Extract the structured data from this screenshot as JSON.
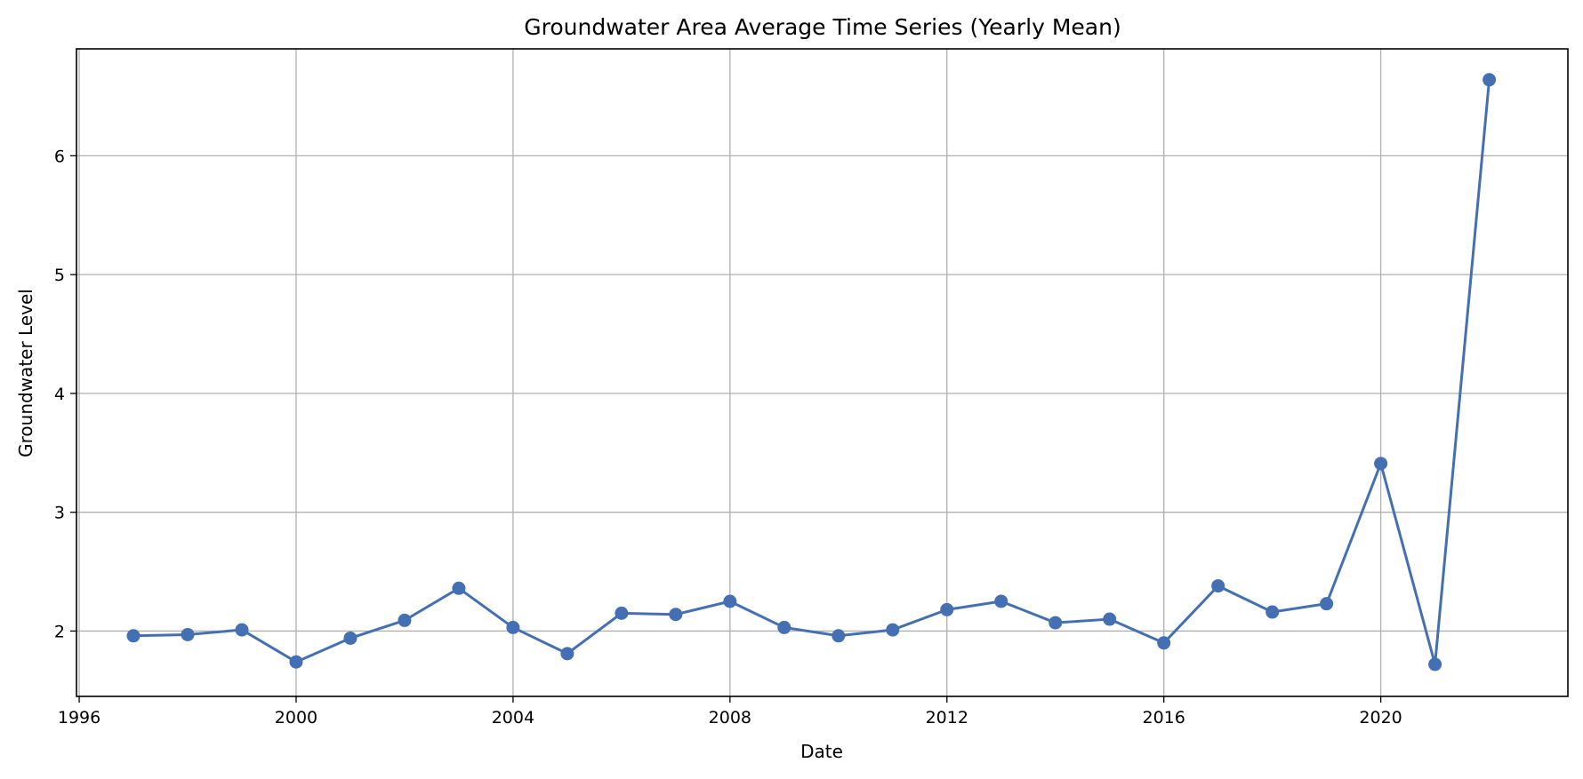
{
  "chart_data": {
    "type": "line",
    "title": "Groundwater Area Average Time Series (Yearly Mean)",
    "xlabel": "Date",
    "ylabel": "Groundwater Level",
    "xlim": [
      1995.95,
      2023.45
    ],
    "ylim": [
      1.45,
      6.9
    ],
    "xticks": [
      1996,
      2000,
      2004,
      2008,
      2012,
      2016,
      2020
    ],
    "xtick_labels": [
      "1996",
      "2000",
      "2004",
      "2008",
      "2012",
      "2016",
      "2020"
    ],
    "yticks": [
      2,
      3,
      4,
      5,
      6
    ],
    "ytick_labels": [
      "2",
      "3",
      "4",
      "5",
      "6"
    ],
    "grid": true,
    "colors": {
      "series": "#4470b3",
      "grid": "#b0b0b0"
    },
    "series": [
      {
        "marker": "circle",
        "x": [
          1997,
          1998,
          1999,
          2000,
          2001,
          2002,
          2003,
          2004,
          2005,
          2006,
          2007,
          2008,
          2009,
          2010,
          2011,
          2012,
          2013,
          2014,
          2015,
          2016,
          2017,
          2018,
          2019,
          2020,
          2021,
          2022
        ],
        "values": [
          1.96,
          1.97,
          2.01,
          1.74,
          1.94,
          2.09,
          2.36,
          2.03,
          1.81,
          2.15,
          2.14,
          2.25,
          2.03,
          1.96,
          2.01,
          2.18,
          2.25,
          2.07,
          2.1,
          1.9,
          2.38,
          2.16,
          2.23,
          3.41,
          1.72,
          6.64
        ]
      }
    ]
  }
}
